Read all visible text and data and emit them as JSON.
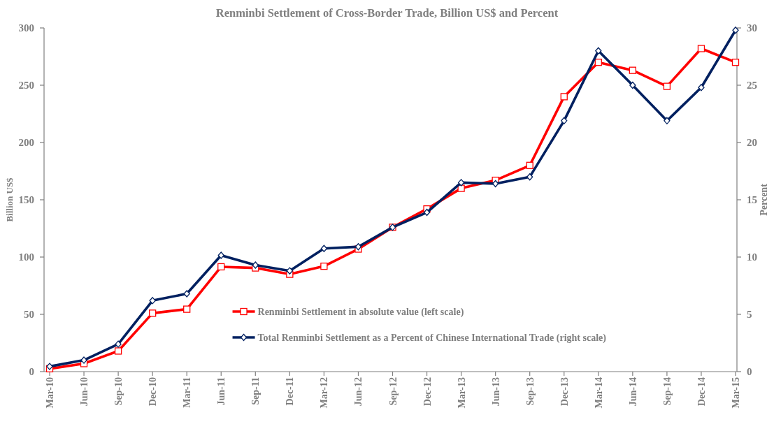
{
  "chart_data": {
    "type": "line",
    "title": "Renminbi Settlement of Cross-Border Trade, Billion US$ and Percent",
    "ylabel": "Billion US$",
    "y2label": "Percent",
    "categories": [
      "Mar-10",
      "Jun-10",
      "Sep-10",
      "Dec-10",
      "Mar-11",
      "Jun-11",
      "Sep-11",
      "Dec-11",
      "Mar-12",
      "Jun-12",
      "Sep-12",
      "Dec-12",
      "Mar-13",
      "Jun-13",
      "Sep-13",
      "Dec-13",
      "Mar-14",
      "Jun-14",
      "Sep-14",
      "Dec-14",
      "Mar-15"
    ],
    "series": [
      {
        "name": "Renminbi Settlement in absolute value (left scale)",
        "color": "#ff0000",
        "marker": "square",
        "values": [
          2.5,
          7,
          18,
          51,
          54.5,
          91.5,
          90.5,
          85,
          92,
          107,
          126,
          142,
          160,
          167,
          180,
          240,
          270,
          263,
          249,
          282,
          270
        ]
      },
      {
        "name": "Total Renminbi Settlement as a Percent of Chinese International Trade (right scale)",
        "color": "#002060",
        "marker": "diamond",
        "axis": "y2",
        "values": [
          0.45,
          1.0,
          2.4,
          6.2,
          6.8,
          10.15,
          9.3,
          8.8,
          10.75,
          10.9,
          12.6,
          13.9,
          16.5,
          16.4,
          17.0,
          21.9,
          28.0,
          25.0,
          21.9,
          24.8,
          29.8
        ]
      }
    ],
    "ylim": [
      0,
      300
    ],
    "yticks": [
      0,
      50,
      100,
      150,
      200,
      250,
      300
    ],
    "y2lim": [
      0,
      30
    ],
    "y2ticks": [
      0,
      5,
      10,
      15,
      20,
      25,
      30
    ],
    "legend": "bottom"
  }
}
